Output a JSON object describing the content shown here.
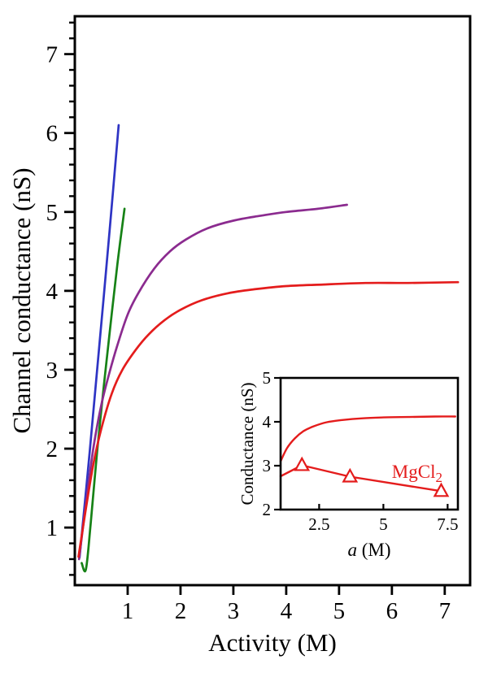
{
  "figure": {
    "background": "#ffffff",
    "axis_color": "#000000"
  },
  "chart_data": [
    {
      "id": "main",
      "type": "line",
      "title": "",
      "xlabel": "Activity (M)",
      "ylabel": "Channel conductance (nS)",
      "xlim": [
        0,
        7.48
      ],
      "ylim": [
        0.27,
        7.48
      ],
      "grid": false,
      "legend": "none",
      "xticks": [
        {
          "v": 1,
          "label": "1"
        },
        {
          "v": 2,
          "label": "2"
        },
        {
          "v": 3,
          "label": "3"
        },
        {
          "v": 4,
          "label": "4"
        },
        {
          "v": 5,
          "label": "5"
        },
        {
          "v": 6,
          "label": "6"
        },
        {
          "v": 7,
          "label": "7"
        }
      ],
      "yticks": [
        {
          "v": 1,
          "label": "1"
        },
        {
          "v": 2,
          "label": "2"
        },
        {
          "v": 3,
          "label": "3"
        },
        {
          "v": 4,
          "label": "4"
        },
        {
          "v": 5,
          "label": "5"
        },
        {
          "v": 6,
          "label": "6"
        },
        {
          "v": 7,
          "label": "7"
        }
      ],
      "y_minor_step": 0.2,
      "series": [
        {
          "name": "blue-line",
          "color": "#2e34c4",
          "width": 2.7,
          "smooth": true,
          "points": [
            [
              0.09,
              0.62
            ],
            [
              0.28,
              1.95
            ],
            [
              0.47,
              3.35
            ],
            [
              0.66,
              4.78
            ],
            [
              0.83,
              6.1
            ]
          ]
        },
        {
          "name": "green-line",
          "color": "#168216",
          "width": 2.7,
          "smooth": true,
          "points": [
            [
              0.13,
              0.55
            ],
            [
              0.21,
              0.47
            ],
            [
              0.3,
              1.05
            ],
            [
              0.42,
              1.95
            ],
            [
              0.55,
              2.8
            ],
            [
              0.7,
              3.72
            ],
            [
              0.82,
              4.42
            ],
            [
              0.94,
              5.04
            ]
          ]
        },
        {
          "name": "purple-curve",
          "color": "#8b2b8f",
          "width": 2.7,
          "smooth": true,
          "points": [
            [
              0.08,
              0.6
            ],
            [
              0.2,
              1.25
            ],
            [
              0.35,
              2.0
            ],
            [
              0.5,
              2.55
            ],
            [
              0.65,
              2.95
            ],
            [
              0.8,
              3.3
            ],
            [
              1.0,
              3.7
            ],
            [
              1.2,
              3.97
            ],
            [
              1.5,
              4.28
            ],
            [
              1.8,
              4.5
            ],
            [
              2.1,
              4.65
            ],
            [
              2.5,
              4.79
            ],
            [
              3.0,
              4.89
            ],
            [
              3.5,
              4.95
            ],
            [
              4.0,
              5.0
            ],
            [
              4.6,
              5.04
            ],
            [
              5.15,
              5.09
            ]
          ]
        },
        {
          "name": "red-curve",
          "color": "#e41c1c",
          "width": 2.7,
          "smooth": true,
          "points": [
            [
              0.07,
              0.63
            ],
            [
              0.2,
              1.2
            ],
            [
              0.35,
              1.8
            ],
            [
              0.5,
              2.25
            ],
            [
              0.7,
              2.7
            ],
            [
              0.9,
              3.0
            ],
            [
              1.15,
              3.25
            ],
            [
              1.4,
              3.45
            ],
            [
              1.7,
              3.63
            ],
            [
              2.0,
              3.76
            ],
            [
              2.4,
              3.88
            ],
            [
              2.9,
              3.97
            ],
            [
              3.4,
              4.02
            ],
            [
              4.0,
              4.06
            ],
            [
              4.7,
              4.08
            ],
            [
              5.5,
              4.1
            ],
            [
              6.3,
              4.1
            ],
            [
              7.25,
              4.11
            ]
          ]
        }
      ]
    },
    {
      "id": "inset",
      "type": "line",
      "title": "",
      "xlabel_italic": "a",
      "xlabel_rest": " (M)",
      "ylabel": "Conductance (nS)",
      "xlim": [
        1.0,
        7.9
      ],
      "ylim": [
        2,
        5
      ],
      "grid": false,
      "legend": "none",
      "xticks": [
        {
          "v": 2.5,
          "label": "2.5"
        },
        {
          "v": 5,
          "label": "5"
        },
        {
          "v": 7.5,
          "label": "7.5"
        }
      ],
      "yticks": [
        {
          "v": 2,
          "label": "2"
        },
        {
          "v": 3,
          "label": "3"
        },
        {
          "v": 4,
          "label": "4"
        },
        {
          "v": 5,
          "label": "5"
        }
      ],
      "annotation": {
        "text": "MgCl",
        "subscript": "2",
        "x": 5.33,
        "y": 2.72,
        "color": "#e41c1c"
      },
      "series": [
        {
          "name": "red-smooth-inset",
          "color": "#e41c1c",
          "width": 2.4,
          "smooth": true,
          "points": [
            [
              1.0,
              3.1
            ],
            [
              1.25,
              3.4
            ],
            [
              1.55,
              3.62
            ],
            [
              1.9,
              3.79
            ],
            [
              2.3,
              3.9
            ],
            [
              2.8,
              3.99
            ],
            [
              3.4,
              4.04
            ],
            [
              4.2,
              4.08
            ],
            [
              5.0,
              4.1
            ],
            [
              6.0,
              4.11
            ],
            [
              7.0,
              4.12
            ],
            [
              7.8,
              4.12
            ]
          ]
        },
        {
          "name": "mgcl2-markers",
          "color": "#e41c1c",
          "width": 2.4,
          "smooth": false,
          "marker": "triangle-open",
          "points": [
            [
              1.0,
              2.76
            ],
            [
              1.83,
              3.01
            ],
            [
              3.7,
              2.75
            ],
            [
              7.25,
              2.42
            ]
          ],
          "marker_points": [
            [
              1.83,
              3.01
            ],
            [
              3.7,
              2.75
            ],
            [
              7.25,
              2.42
            ]
          ]
        }
      ]
    }
  ]
}
